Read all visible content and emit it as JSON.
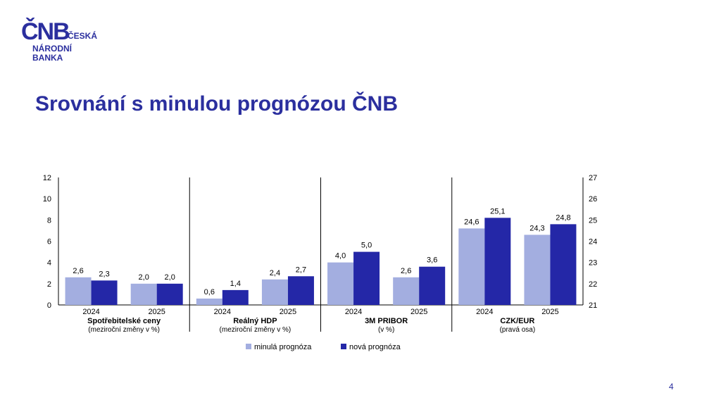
{
  "logo": {
    "mark": "ČNB",
    "line1": "ČESKÁ",
    "line2": "NÁRODNÍ",
    "line3": "BANKA"
  },
  "title": "Srovnání s minulou prognózou ČNB",
  "page_number": "4",
  "colors": {
    "brand": "#2b2f9e",
    "old": "#a3aee0",
    "new": "#2427a7"
  },
  "chart_data": {
    "type": "bar",
    "legend_position": "bottom",
    "grid": false,
    "left_axis": {
      "ticks": [
        "0",
        "2",
        "4",
        "6",
        "8",
        "10",
        "12"
      ],
      "ylim": [
        0,
        12
      ]
    },
    "right_axis": {
      "ticks": [
        "21",
        "22",
        "23",
        "24",
        "25",
        "26",
        "27"
      ],
      "ylim": [
        21,
        27
      ]
    },
    "series": [
      {
        "name": "minulá prognóza",
        "color": "#a3aee0"
      },
      {
        "name": "nová prognóza",
        "color": "#2427a7"
      }
    ],
    "groups": [
      {
        "title": "Spotřebitelské ceny",
        "subtitle": "(meziroční změny v %)",
        "axis": "left",
        "categories": [
          {
            "year": "2024",
            "values": [
              2.6,
              2.3
            ],
            "labels": [
              "2,6",
              "2,3"
            ]
          },
          {
            "year": "2025",
            "values": [
              2.0,
              2.0
            ],
            "labels": [
              "2,0",
              "2,0"
            ]
          }
        ]
      },
      {
        "title": "Reálný HDP",
        "subtitle": "(meziroční změny v %)",
        "axis": "left",
        "categories": [
          {
            "year": "2024",
            "values": [
              0.6,
              1.4
            ],
            "labels": [
              "0,6",
              "1,4"
            ]
          },
          {
            "year": "2025",
            "values": [
              2.4,
              2.7
            ],
            "labels": [
              "2,4",
              "2,7"
            ]
          }
        ]
      },
      {
        "title": "3M PRIBOR",
        "subtitle": "(v %)",
        "axis": "left",
        "categories": [
          {
            "year": "2024",
            "values": [
              4.0,
              5.0
            ],
            "labels": [
              "4,0",
              "5,0"
            ]
          },
          {
            "year": "2025",
            "values": [
              2.6,
              3.6
            ],
            "labels": [
              "2,6",
              "3,6"
            ]
          }
        ]
      },
      {
        "title": "CZK/EUR",
        "subtitle": "(pravá osa)",
        "axis": "right",
        "categories": [
          {
            "year": "2024",
            "values": [
              24.6,
              25.1
            ],
            "labels": [
              "24,6",
              "25,1"
            ]
          },
          {
            "year": "2025",
            "values": [
              24.3,
              24.8
            ],
            "labels": [
              "24,3",
              "24,8"
            ]
          }
        ]
      }
    ]
  }
}
